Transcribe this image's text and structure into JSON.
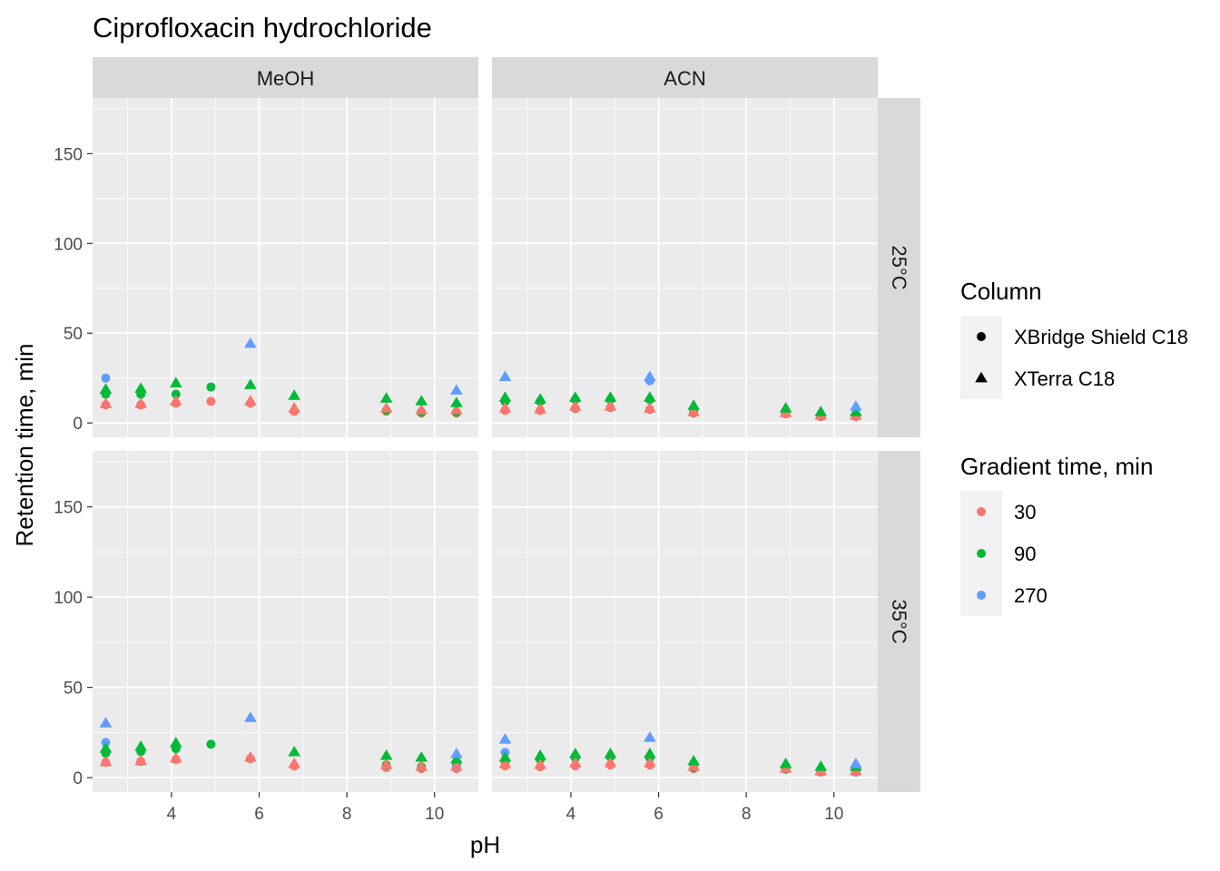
{
  "chart_data": {
    "type": "scatter",
    "title": "Ciprofloxacin hydrochloride",
    "xlabel": "pH",
    "ylabel": "Retention time, min",
    "xlim": [
      2.2,
      11.0
    ],
    "ylim": [
      -8,
      181
    ],
    "x_ticks": [
      4,
      6,
      8,
      10
    ],
    "y_ticks": [
      0,
      50,
      100,
      150
    ],
    "grid": true,
    "facet_cols": [
      "MeOH",
      "ACN"
    ],
    "facet_rows": [
      "25°C",
      "35°C"
    ],
    "legends": [
      {
        "title": "Column",
        "entries": [
          {
            "label": "XBridge Shield C18",
            "shape": "circle"
          },
          {
            "label": "XTerra C18",
            "shape": "triangle"
          }
        ]
      },
      {
        "title": "Gradient time, min",
        "entries": [
          {
            "label": "30",
            "color": "#F8766D"
          },
          {
            "label": "90",
            "color": "#00BA38"
          },
          {
            "label": "270",
            "color": "#619CFF"
          }
        ]
      }
    ],
    "series": [
      {
        "row": "25°C",
        "col": "MeOH",
        "column": "XBridge Shield C18",
        "gradient": "30",
        "points": [
          [
            2.5,
            10
          ],
          [
            3.3,
            10
          ],
          [
            4.1,
            11
          ],
          [
            4.9,
            12
          ],
          [
            5.8,
            11
          ],
          [
            6.8,
            6.5
          ],
          [
            8.9,
            6.5
          ],
          [
            9.7,
            5.5
          ],
          [
            10.5,
            5.5
          ]
        ]
      },
      {
        "row": "25°C",
        "col": "MeOH",
        "column": "XBridge Shield C18",
        "gradient": "90",
        "points": [
          [
            2.5,
            16
          ],
          [
            3.3,
            16
          ],
          [
            4.1,
            16
          ],
          [
            4.9,
            20
          ],
          [
            8.9,
            7
          ],
          [
            9.7,
            6
          ],
          [
            10.5,
            6
          ]
        ]
      },
      {
        "row": "25°C",
        "col": "MeOH",
        "column": "XBridge Shield C18",
        "gradient": "270",
        "points": [
          [
            2.5,
            25
          ]
        ]
      },
      {
        "row": "25°C",
        "col": "MeOH",
        "column": "XTerra C18",
        "gradient": "30",
        "points": [
          [
            2.5,
            10.5
          ],
          [
            3.3,
            10.5
          ],
          [
            4.1,
            12
          ],
          [
            5.8,
            12
          ],
          [
            6.8,
            8
          ],
          [
            8.9,
            8
          ],
          [
            9.7,
            7
          ],
          [
            10.5,
            7
          ]
        ]
      },
      {
        "row": "25°C",
        "col": "MeOH",
        "column": "XTerra C18",
        "gradient": "90",
        "points": [
          [
            2.5,
            18.5
          ],
          [
            3.3,
            19
          ],
          [
            4.1,
            22
          ],
          [
            5.8,
            21
          ],
          [
            6.8,
            15
          ],
          [
            8.9,
            13.5
          ],
          [
            9.7,
            12
          ],
          [
            10.5,
            11
          ]
        ]
      },
      {
        "row": "25°C",
        "col": "MeOH",
        "column": "XTerra C18",
        "gradient": "270",
        "points": [
          [
            5.8,
            44
          ],
          [
            10.5,
            18
          ]
        ]
      },
      {
        "row": "25°C",
        "col": "ACN",
        "column": "XBridge Shield C18",
        "gradient": "30",
        "points": [
          [
            2.5,
            7
          ],
          [
            3.3,
            7
          ],
          [
            4.1,
            8
          ],
          [
            4.9,
            8.5
          ],
          [
            5.8,
            7.5
          ],
          [
            6.8,
            5.5
          ],
          [
            8.9,
            5
          ],
          [
            9.7,
            3.5
          ],
          [
            10.5,
            3.5
          ]
        ]
      },
      {
        "row": "25°C",
        "col": "ACN",
        "column": "XBridge Shield C18",
        "gradient": "90",
        "points": [
          [
            2.5,
            12
          ],
          [
            3.3,
            12
          ],
          [
            4.1,
            13
          ],
          [
            4.9,
            13
          ],
          [
            5.8,
            13
          ],
          [
            6.8,
            6
          ],
          [
            8.9,
            6
          ],
          [
            9.7,
            4
          ],
          [
            10.5,
            4.5
          ]
        ]
      },
      {
        "row": "25°C",
        "col": "ACN",
        "column": "XBridge Shield C18",
        "gradient": "270",
        "points": [
          [
            5.8,
            23.5
          ]
        ]
      },
      {
        "row": "25°C",
        "col": "ACN",
        "column": "XTerra C18",
        "gradient": "30",
        "points": [
          [
            2.5,
            8
          ],
          [
            3.3,
            7.5
          ],
          [
            4.1,
            9
          ],
          [
            4.9,
            9
          ],
          [
            5.8,
            8
          ],
          [
            6.8,
            6
          ],
          [
            8.9,
            5.5
          ],
          [
            9.7,
            4
          ],
          [
            10.5,
            4
          ]
        ]
      },
      {
        "row": "25°C",
        "col": "ACN",
        "column": "XTerra C18",
        "gradient": "90",
        "points": [
          [
            2.5,
            14
          ],
          [
            3.3,
            13
          ],
          [
            4.1,
            14
          ],
          [
            4.9,
            14
          ],
          [
            5.8,
            14
          ],
          [
            6.8,
            9.5
          ],
          [
            8.9,
            8
          ],
          [
            9.7,
            6
          ],
          [
            10.5,
            6
          ]
        ]
      },
      {
        "row": "25°C",
        "col": "ACN",
        "column": "XTerra C18",
        "gradient": "270",
        "points": [
          [
            2.5,
            25.5
          ],
          [
            5.8,
            25.5
          ],
          [
            10.5,
            9
          ]
        ]
      },
      {
        "row": "35°C",
        "col": "MeOH",
        "column": "XBridge Shield C18",
        "gradient": "30",
        "points": [
          [
            2.5,
            8.5
          ],
          [
            3.3,
            9
          ],
          [
            4.1,
            10
          ],
          [
            5.8,
            10.5
          ],
          [
            6.8,
            6.5
          ],
          [
            8.9,
            5.5
          ],
          [
            9.7,
            5
          ],
          [
            10.5,
            5
          ]
        ]
      },
      {
        "row": "35°C",
        "col": "MeOH",
        "column": "XBridge Shield C18",
        "gradient": "90",
        "points": [
          [
            2.5,
            13.5
          ],
          [
            3.3,
            14.5
          ],
          [
            4.1,
            16
          ],
          [
            4.9,
            18.5
          ],
          [
            8.9,
            7
          ],
          [
            9.7,
            6
          ],
          [
            10.5,
            6.5
          ]
        ]
      },
      {
        "row": "35°C",
        "col": "MeOH",
        "column": "XBridge Shield C18",
        "gradient": "270",
        "points": [
          [
            2.5,
            19.5
          ],
          [
            10.5,
            5.5
          ]
        ]
      },
      {
        "row": "35°C",
        "col": "MeOH",
        "column": "XTerra C18",
        "gradient": "30",
        "points": [
          [
            2.5,
            8.5
          ],
          [
            3.3,
            9
          ],
          [
            4.1,
            10.5
          ],
          [
            5.8,
            11
          ],
          [
            6.8,
            7.5
          ],
          [
            8.9,
            7
          ],
          [
            9.7,
            6
          ],
          [
            10.5,
            6
          ]
        ]
      },
      {
        "row": "35°C",
        "col": "MeOH",
        "column": "XTerra C18",
        "gradient": "90",
        "points": [
          [
            2.5,
            16
          ],
          [
            3.3,
            17
          ],
          [
            4.1,
            19
          ],
          [
            6.8,
            14
          ],
          [
            8.9,
            12
          ],
          [
            9.7,
            11
          ],
          [
            10.5,
            10
          ]
        ]
      },
      {
        "row": "35°C",
        "col": "MeOH",
        "column": "XTerra C18",
        "gradient": "270",
        "points": [
          [
            2.5,
            30
          ],
          [
            5.8,
            33
          ],
          [
            10.5,
            13
          ]
        ]
      },
      {
        "row": "35°C",
        "col": "ACN",
        "column": "XBridge Shield C18",
        "gradient": "30",
        "points": [
          [
            2.5,
            6.5
          ],
          [
            3.3,
            6
          ],
          [
            4.1,
            6.5
          ],
          [
            4.9,
            7
          ],
          [
            5.8,
            7
          ],
          [
            6.8,
            5
          ],
          [
            8.9,
            4.5
          ],
          [
            9.7,
            3
          ],
          [
            10.5,
            3
          ]
        ]
      },
      {
        "row": "35°C",
        "col": "ACN",
        "column": "XBridge Shield C18",
        "gradient": "90",
        "points": [
          [
            2.5,
            9
          ],
          [
            3.3,
            10
          ],
          [
            4.1,
            11
          ],
          [
            4.9,
            11.5
          ],
          [
            5.8,
            11
          ],
          [
            6.8,
            5.5
          ],
          [
            8.9,
            5
          ],
          [
            9.7,
            3.5
          ],
          [
            10.5,
            4
          ]
        ]
      },
      {
        "row": "35°C",
        "col": "ACN",
        "column": "XBridge Shield C18",
        "gradient": "270",
        "points": [
          [
            2.5,
            14
          ],
          [
            10.5,
            3
          ]
        ]
      },
      {
        "row": "35°C",
        "col": "ACN",
        "column": "XTerra C18",
        "gradient": "30",
        "points": [
          [
            2.5,
            7.5
          ],
          [
            3.3,
            7
          ],
          [
            4.1,
            8
          ],
          [
            4.9,
            8
          ],
          [
            5.8,
            8
          ],
          [
            6.8,
            6
          ],
          [
            8.9,
            5
          ],
          [
            9.7,
            3.5
          ],
          [
            10.5,
            3.5
          ]
        ]
      },
      {
        "row": "35°C",
        "col": "ACN",
        "column": "XTerra C18",
        "gradient": "90",
        "points": [
          [
            2.5,
            11
          ],
          [
            3.3,
            12
          ],
          [
            4.1,
            13
          ],
          [
            4.9,
            13
          ],
          [
            5.8,
            13
          ],
          [
            6.8,
            9
          ],
          [
            8.9,
            7.5
          ],
          [
            9.7,
            6
          ],
          [
            10.5,
            6
          ]
        ]
      },
      {
        "row": "35°C",
        "col": "ACN",
        "column": "XTerra C18",
        "gradient": "270",
        "points": [
          [
            2.5,
            21
          ],
          [
            5.8,
            22
          ],
          [
            10.5,
            7.5
          ]
        ]
      }
    ]
  }
}
